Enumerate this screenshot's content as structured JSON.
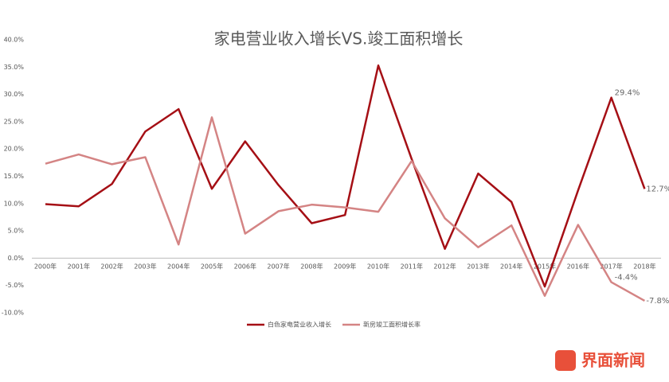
{
  "chart_data": {
    "type": "line",
    "title": "家电营业收入增长VS.竣工面积增长",
    "categories": [
      "2000年",
      "2001年",
      "2002年",
      "2003年",
      "2004年",
      "2005年",
      "2006年",
      "2007年",
      "2008年",
      "2009年",
      "2010年",
      "2011年",
      "2012年",
      "2013年",
      "2014年",
      "2015年",
      "2016年",
      "2017年",
      "2018年"
    ],
    "series": [
      {
        "name": "白色家电营业收入增长",
        "color": "#a50f15",
        "values": [
          9.9,
          9.5,
          13.6,
          23.2,
          27.3,
          12.7,
          21.4,
          13.4,
          6.4,
          7.9,
          35.3,
          18.2,
          1.7,
          15.5,
          10.3,
          -5.2,
          12.4,
          29.4,
          12.7
        ],
        "value_labels": [
          null,
          null,
          null,
          null,
          null,
          null,
          null,
          null,
          null,
          null,
          null,
          null,
          null,
          null,
          null,
          null,
          null,
          "29.4%",
          "12.7%"
        ]
      },
      {
        "name": "新房竣工面积增长率",
        "color": "#d48484",
        "values": [
          17.3,
          19.0,
          17.2,
          18.5,
          2.5,
          25.8,
          4.5,
          8.6,
          9.8,
          9.3,
          8.5,
          17.8,
          7.3,
          2.0,
          6.0,
          -6.9,
          6.1,
          -4.4,
          -7.8
        ],
        "value_labels": [
          null,
          null,
          null,
          null,
          null,
          null,
          null,
          null,
          null,
          null,
          null,
          null,
          null,
          null,
          null,
          null,
          null,
          "-4.4%",
          "-7.8%"
        ]
      }
    ],
    "ylim": [
      -10,
      40
    ],
    "yticks": [
      {
        "value": -10,
        "label": "-10.0%"
      },
      {
        "value": -5,
        "label": "-5.0%"
      },
      {
        "value": 0,
        "label": "0.0%"
      },
      {
        "value": 5,
        "label": "5.0%"
      },
      {
        "value": 10,
        "label": "10.0%"
      },
      {
        "value": 15,
        "label": "15.0%"
      },
      {
        "value": 20,
        "label": "20.0%"
      },
      {
        "value": 25,
        "label": "25.0%"
      },
      {
        "value": 30,
        "label": "30.0%"
      },
      {
        "value": 35,
        "label": "35.0%"
      },
      {
        "value": 40,
        "label": "40.0%"
      }
    ],
    "grid": false,
    "legend": "bottom"
  },
  "watermark": "界面新闻"
}
